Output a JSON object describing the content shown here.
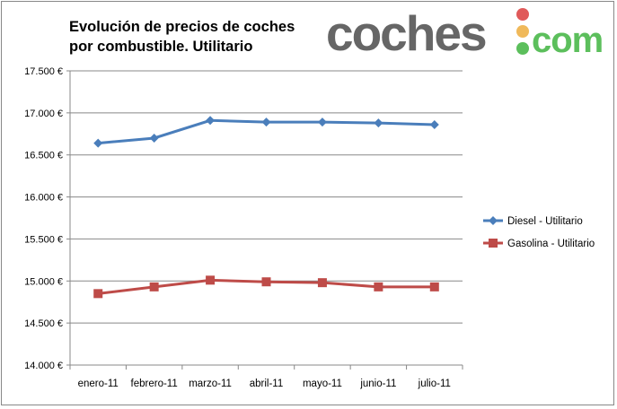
{
  "chart_data": {
    "type": "line",
    "title": "Evolución de precios de coches por combustible. Utilitario",
    "title_lines": [
      "Evolución de precios de coches",
      "por combustible. Utilitario"
    ],
    "categories": [
      "enero-11",
      "febrero-11",
      "marzo-11",
      "abril-11",
      "mayo-11",
      "junio-11",
      "julio-11"
    ],
    "ylim": [
      14000,
      17500
    ],
    "yticks": [
      14000,
      14500,
      15000,
      15500,
      16000,
      16500,
      17000,
      17500
    ],
    "ytick_labels": [
      "14.000 €",
      "14.500 €",
      "15.000 €",
      "15.500 €",
      "16.000 €",
      "16.500 €",
      "17.000 €",
      "17.500 €"
    ],
    "grid": true,
    "legend_position": "right",
    "series": [
      {
        "name": "Diesel - Utilitario",
        "color": "#4a7ebb",
        "marker": "diamond",
        "values": [
          16640,
          16700,
          16910,
          16890,
          16890,
          16880,
          16860
        ]
      },
      {
        "name": "Gasolina - Utilitario",
        "color": "#be4b48",
        "marker": "square",
        "values": [
          14850,
          14930,
          15010,
          14990,
          14980,
          14930,
          14930
        ]
      }
    ]
  },
  "logo": {
    "text_main": "coches",
    "text_dot": "com",
    "colors": {
      "main": "#666666",
      "dot": "#5cb85c",
      "red": "#e05a5a",
      "yellow": "#f0b95a",
      "green": "#5cbf5c"
    }
  }
}
